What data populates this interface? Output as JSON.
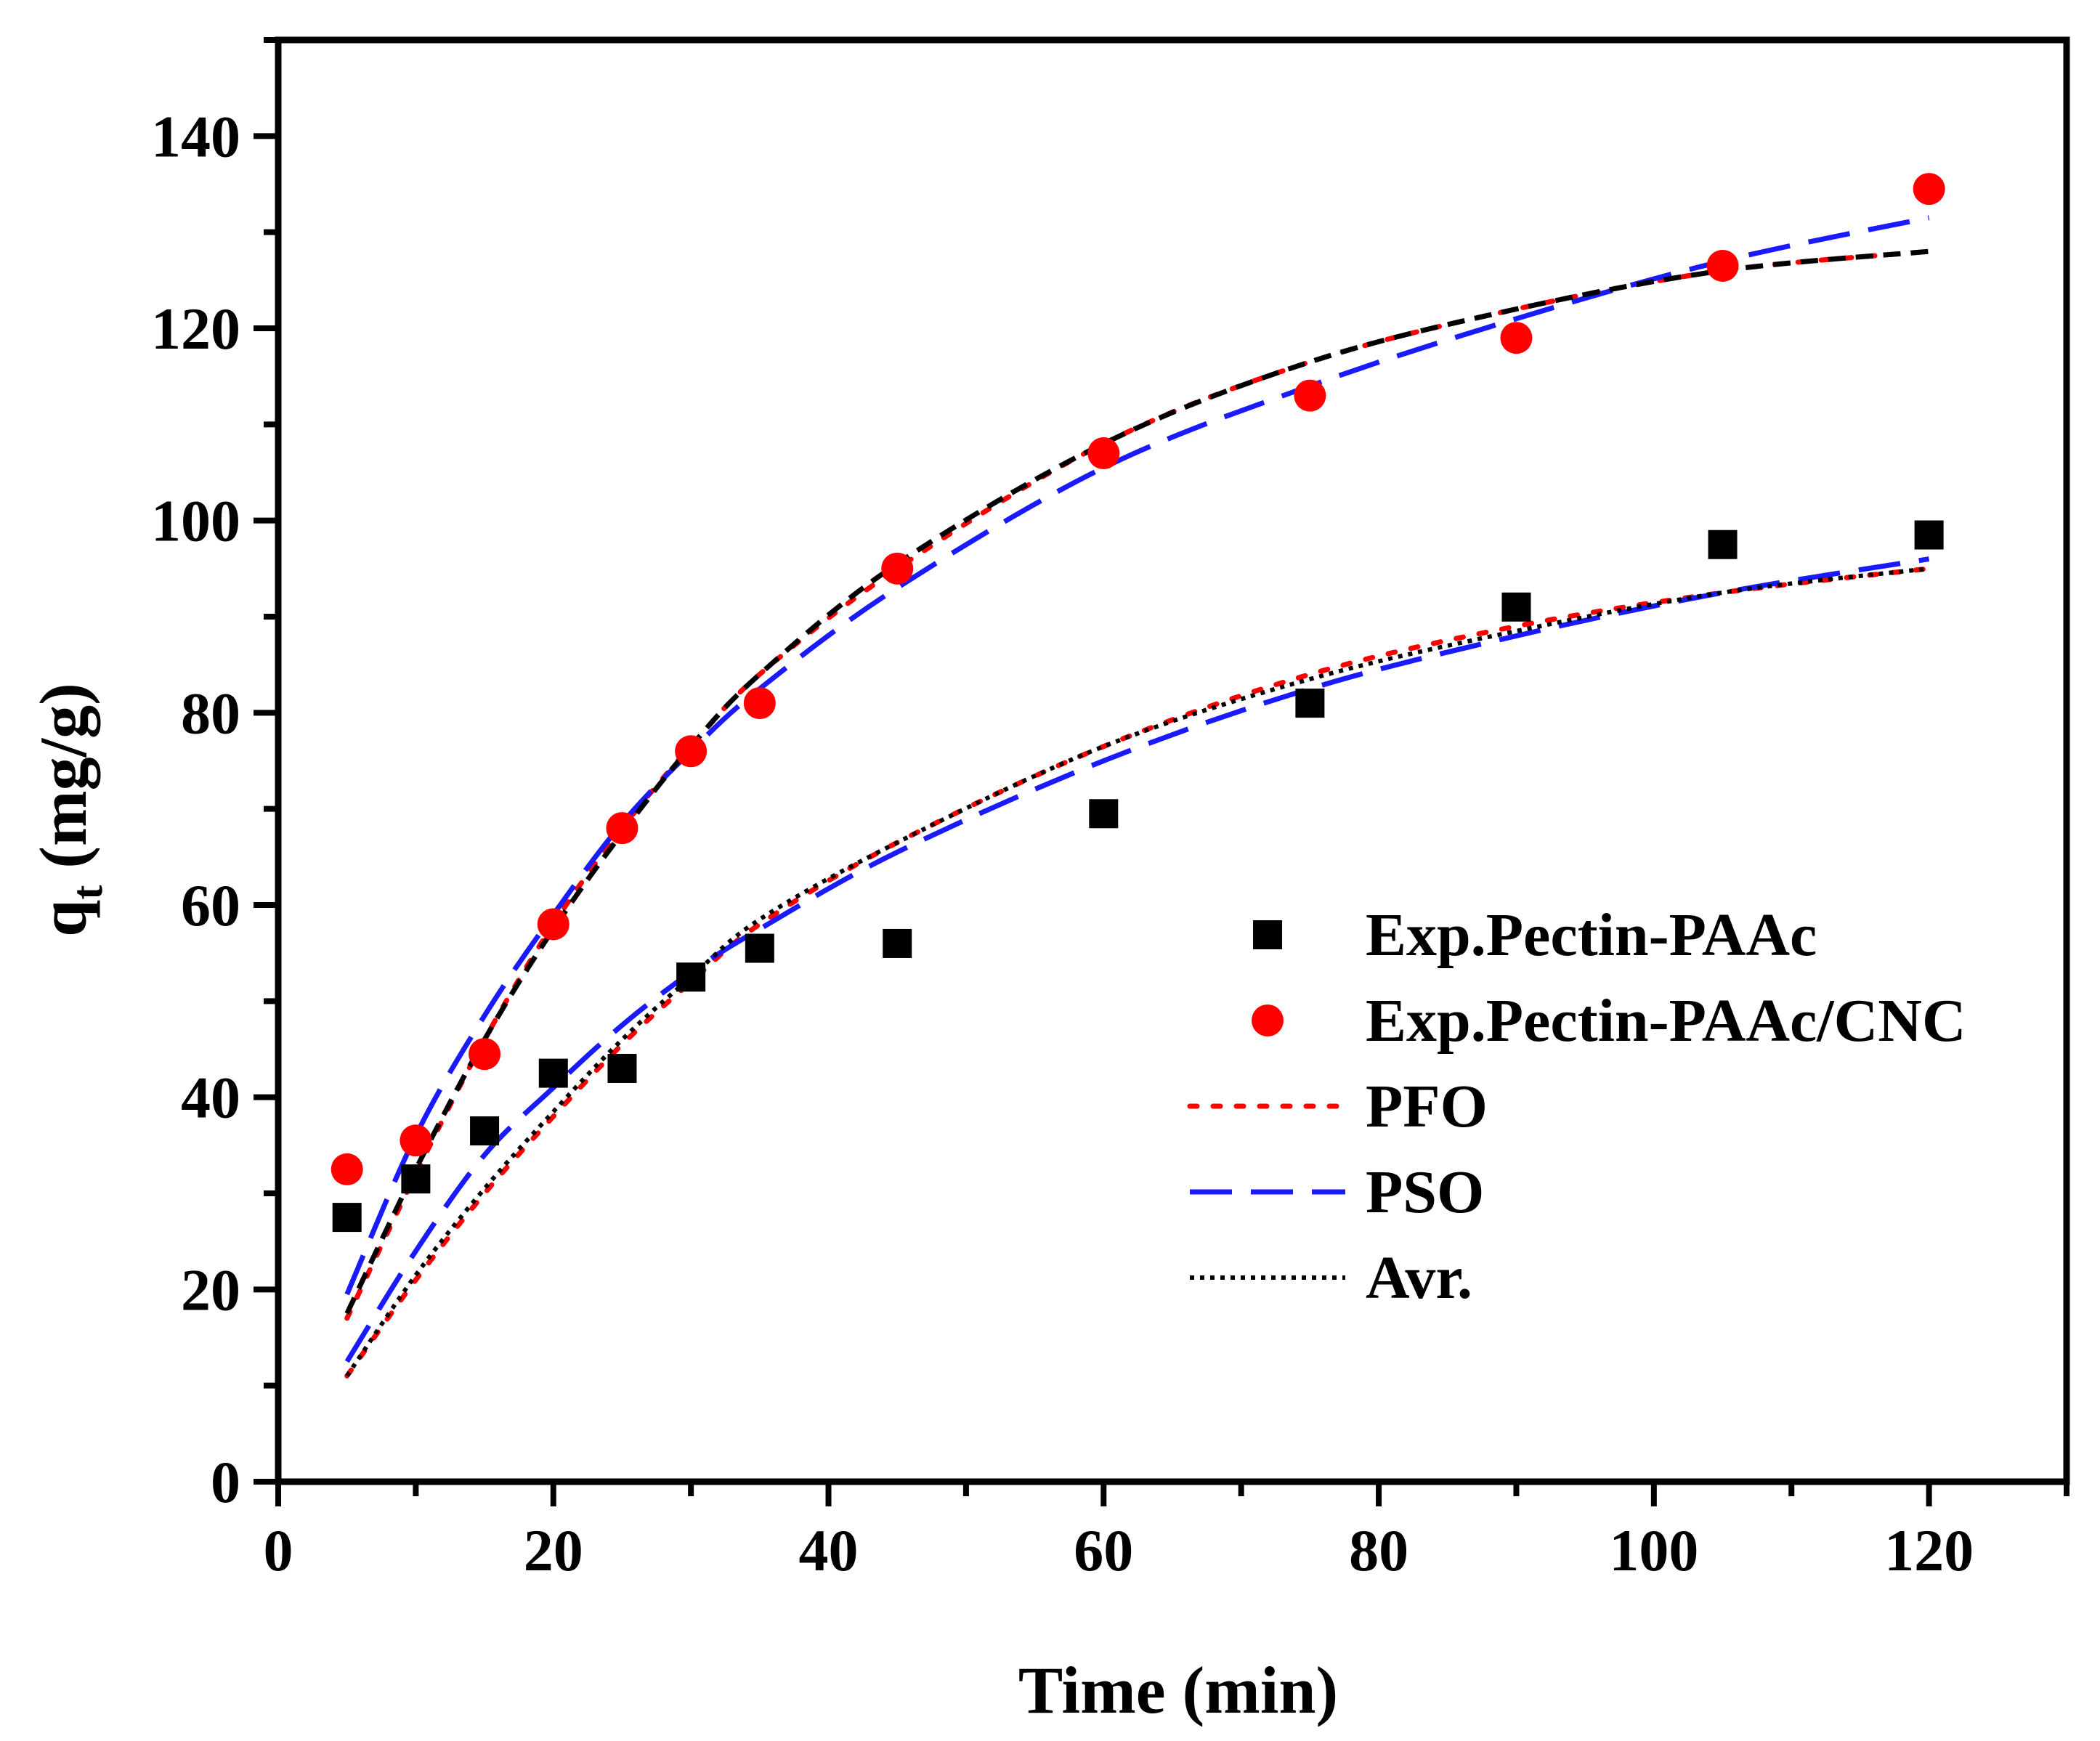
{
  "chart_data": {
    "type": "scatter",
    "title": "",
    "xlabel": "Time (min)",
    "ylabel_main": "q",
    "ylabel_sub": "t",
    "ylabel_unit": " (mg/g)",
    "xlim": [
      0,
      130
    ],
    "ylim": [
      0,
      150
    ],
    "xticks": [
      0,
      20,
      40,
      60,
      80,
      100,
      120
    ],
    "yticks": [
      0,
      20,
      40,
      60,
      80,
      100,
      120,
      140
    ],
    "x_minor_step": 10,
    "y_minor_step": 10,
    "legend_position": "center-right",
    "colors": {
      "black": "#000000",
      "red": "#ff0000",
      "blue": "#1a1aff"
    },
    "series": [
      {
        "name": "Exp.Pectin-PAAc",
        "kind": "marker",
        "marker": "square",
        "color": "#000000",
        "x": [
          5,
          10,
          15,
          20,
          25,
          30,
          35,
          45,
          60,
          75,
          90,
          105,
          120
        ],
        "y": [
          27.5,
          31.5,
          36.5,
          42.5,
          43.0,
          52.5,
          55.5,
          56.0,
          69.5,
          81.0,
          91.0,
          97.5,
          98.5
        ]
      },
      {
        "name": "Exp.Pectin-PAAc/CNC",
        "kind": "marker",
        "marker": "circle",
        "color": "#ff0000",
        "x": [
          5,
          10,
          15,
          20,
          25,
          30,
          35,
          45,
          60,
          75,
          90,
          105,
          120
        ],
        "y": [
          32.5,
          35.5,
          44.5,
          58.0,
          68.0,
          76.0,
          81.0,
          95.0,
          107.0,
          113.0,
          119.0,
          126.5,
          134.5
        ]
      },
      {
        "name": "PFO",
        "kind": "line",
        "dash": "dotted",
        "color": "#ff0000",
        "show_in_legend": true,
        "curves": [
          {
            "x": [
              5,
              10,
              15,
              20,
              25,
              30,
              35,
              45,
              60,
              75,
              90,
              105,
              120
            ],
            "y": [
              11.0,
              21.0,
              30.0,
              38.0,
              45.5,
              52.0,
              58.0,
              66.5,
              76.5,
              84.0,
              89.0,
              92.5,
              95.0
            ]
          },
          {
            "x": [
              5,
              10,
              15,
              20,
              25,
              30,
              35,
              45,
              60,
              75,
              90,
              105,
              120
            ],
            "y": [
              17.0,
              32.0,
              46.0,
              58.0,
              68.0,
              76.5,
              84.0,
              95.0,
              108.0,
              116.5,
              122.0,
              126.0,
              128.0
            ]
          }
        ]
      },
      {
        "name": "PSO",
        "kind": "line",
        "dash": "dashed",
        "color": "#1a1aff",
        "show_in_legend": true,
        "curves": [
          {
            "x": [
              5,
              10,
              15,
              20,
              25,
              30,
              35,
              45,
              60,
              75,
              90,
              105,
              120
            ],
            "y": [
              12.5,
              24.0,
              34.0,
              41.0,
              47.5,
              53.0,
              57.5,
              65.5,
              75.0,
              82.5,
              88.0,
              92.5,
              96.0
            ]
          },
          {
            "x": [
              5,
              10,
              15,
              20,
              25,
              30,
              35,
              45,
              60,
              75,
              90,
              105,
              120
            ],
            "y": [
              19.5,
              36.0,
              48.5,
              59.0,
              68.5,
              76.0,
              82.5,
              93.0,
              105.5,
              114.0,
              121.0,
              127.0,
              131.5
            ]
          }
        ]
      },
      {
        "name": "Avr.",
        "kind": "line",
        "dash": "fine-dotted",
        "color": "#000000",
        "show_in_legend": true,
        "curves": [
          {
            "x": [
              5,
              10,
              15,
              20,
              25,
              30,
              35,
              45,
              60,
              75,
              90,
              105,
              120
            ],
            "y": [
              11.0,
              21.5,
              30.5,
              38.5,
              46.0,
              52.5,
              58.5,
              66.5,
              76.5,
              83.5,
              88.5,
              92.5,
              95.0
            ]
          }
        ]
      },
      {
        "name": "Avr. (Pectin-PAAc/CNC)",
        "kind": "line",
        "dash": "short-dashed",
        "color": "#000000",
        "show_in_legend": false,
        "curves": [
          {
            "x": [
              5,
              10,
              15,
              20,
              25,
              30,
              35,
              45,
              60,
              75,
              90,
              105,
              120
            ],
            "y": [
              17.5,
              32.5,
              46.0,
              57.5,
              67.5,
              76.5,
              84.0,
              95.5,
              108.0,
              116.5,
              122.0,
              126.0,
              128.0
            ]
          }
        ]
      }
    ]
  }
}
